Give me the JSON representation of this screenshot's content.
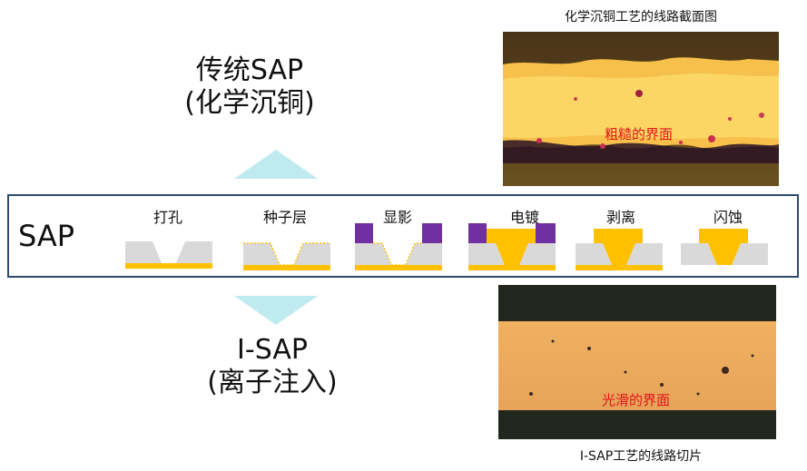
{
  "traditional": {
    "title_line1": "传统SAP",
    "title_line2": "(化学沉铜)"
  },
  "isap": {
    "title_line1": "I-SAP",
    "title_line2": "(离子注入)"
  },
  "process": {
    "row_label": "SAP",
    "steps": [
      {
        "label": "打孔"
      },
      {
        "label": "种子层"
      },
      {
        "label": "显影"
      },
      {
        "label": "电镀"
      },
      {
        "label": "剥离"
      },
      {
        "label": "闪蚀"
      }
    ]
  },
  "top_photo": {
    "caption": "化学沉铜工艺的线路截面图",
    "annotation": "粗糙的界面"
  },
  "bottom_photo": {
    "caption": "I-SAP工艺的线路切片",
    "annotation": "光滑的界面"
  },
  "colors": {
    "frame": "#2f4a6e",
    "arrow": "#bfeaf0",
    "substrate": "#d9d9d9",
    "copper": "#ffc000",
    "resist": "#7030a0",
    "annotation_red": "#e3141b"
  }
}
